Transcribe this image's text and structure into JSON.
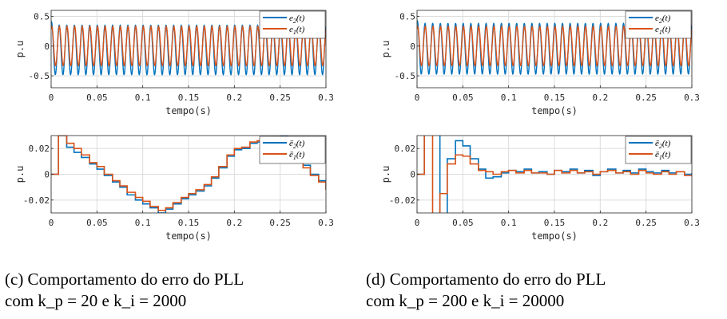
{
  "colors": {
    "blue": "#0072bd",
    "orange": "#d95319",
    "grid": "#dcdcdc"
  },
  "chart_data": [
    {
      "type": "line",
      "panel": "top-left",
      "xlabel": "tempo(s)",
      "ylabel": "p.u",
      "xlim": [
        0,
        0.3
      ],
      "ylim": [
        -0.7,
        0.6
      ],
      "xticks": [
        "0",
        "0.05",
        "0.1",
        "0.15",
        "0.2",
        "0.25",
        "0.3"
      ],
      "yticks": [
        "0.5",
        "0",
        "-0.5"
      ],
      "ytick_values": [
        0.5,
        0,
        -0.5
      ],
      "grid": true,
      "legend": "top-right",
      "signal": {
        "kind": "sine",
        "frequency_hz": 120,
        "blue_min": -0.48,
        "blue_max": 0.35,
        "orange_min": -0.33,
        "orange_max": 0.33
      },
      "series": [
        {
          "name": "e2(t)",
          "color": "blue"
        },
        {
          "name": "e1(t)",
          "color": "orange"
        }
      ]
    },
    {
      "type": "line",
      "panel": "top-right",
      "xlabel": "tempo(s)",
      "ylabel": "p.u",
      "xlim": [
        0,
        0.3
      ],
      "ylim": [
        -0.7,
        0.6
      ],
      "xticks": [
        "0",
        "0.05",
        "0.1",
        "0.15",
        "0.2",
        "0.25",
        "0.3"
      ],
      "yticks": [
        "0.5",
        "0",
        "-0.5"
      ],
      "ytick_values": [
        0.5,
        0,
        -0.5
      ],
      "grid": true,
      "legend": "top-right",
      "signal": {
        "kind": "sine",
        "frequency_hz": 120,
        "blue_min": -0.47,
        "blue_max": 0.38,
        "orange_min": -0.33,
        "orange_max": 0.33
      },
      "series": [
        {
          "name": "e2(t)",
          "color": "blue"
        },
        {
          "name": "e1(t)",
          "color": "orange"
        }
      ]
    },
    {
      "type": "line",
      "panel": "bottom-left",
      "xlabel": "tempo(s)",
      "ylabel": "p.u",
      "xlim": [
        0,
        0.3
      ],
      "ylim": [
        -0.03,
        0.03
      ],
      "xticks": [
        "0",
        "0.05",
        "0.1",
        "0.15",
        "0.2",
        "0.25",
        "0.3"
      ],
      "yticks": [
        "0.02",
        "0",
        "-0.02"
      ],
      "ytick_values": [
        0.02,
        0,
        -0.02
      ],
      "grid": true,
      "legend": "top-right",
      "series": [
        {
          "name": "ē2(t)",
          "color": "blue",
          "x": [
            0,
            0.008,
            0.017,
            0.025,
            0.033,
            0.042,
            0.05,
            0.058,
            0.067,
            0.075,
            0.083,
            0.092,
            0.1,
            0.108,
            0.117,
            0.125,
            0.133,
            0.142,
            0.15,
            0.158,
            0.167,
            0.175,
            0.183,
            0.192,
            0.2,
            0.208,
            0.217,
            0.225,
            0.233,
            0.242,
            0.25,
            0.258,
            0.267,
            0.275,
            0.283,
            0.292,
            0.3
          ],
          "y": [
            0,
            0.03,
            0.021,
            0.017,
            0.013,
            0.008,
            0.004,
            -0.001,
            -0.006,
            -0.01,
            -0.016,
            -0.02,
            -0.023,
            -0.026,
            -0.03,
            -0.027,
            -0.023,
            -0.019,
            -0.016,
            -0.013,
            -0.009,
            -0.003,
            0.005,
            0.014,
            0.019,
            0.02,
            0.024,
            0.025,
            0.027,
            0.026,
            0.03,
            0.025,
            0.017,
            0.007,
            0,
            -0.005,
            -0.012
          ]
        },
        {
          "name": "ē1(t)",
          "color": "orange",
          "x": [
            0,
            0.008,
            0.017,
            0.025,
            0.033,
            0.042,
            0.05,
            0.058,
            0.067,
            0.075,
            0.083,
            0.092,
            0.1,
            0.108,
            0.117,
            0.125,
            0.133,
            0.142,
            0.15,
            0.158,
            0.167,
            0.175,
            0.183,
            0.192,
            0.2,
            0.208,
            0.217,
            0.225,
            0.233,
            0.242,
            0.25,
            0.258,
            0.267,
            0.275,
            0.283,
            0.292,
            0.3
          ],
          "y": [
            0,
            0.03,
            0.024,
            0.02,
            0.015,
            0.009,
            0.006,
            0,
            -0.005,
            -0.009,
            -0.014,
            -0.018,
            -0.021,
            -0.025,
            -0.028,
            -0.026,
            -0.022,
            -0.018,
            -0.015,
            -0.012,
            -0.008,
            -0.002,
            0.006,
            0.015,
            0.02,
            0.021,
            0.025,
            0.026,
            0.028,
            0.026,
            0.029,
            0.022,
            0.015,
            0.005,
            -0.001,
            -0.006,
            -0.012
          ]
        }
      ]
    },
    {
      "type": "line",
      "panel": "bottom-right",
      "xlabel": "tempo(s)",
      "ylabel": "p.u",
      "xlim": [
        0,
        0.3
      ],
      "ylim": [
        -0.03,
        0.03
      ],
      "xticks": [
        "0",
        "0.05",
        "0.1",
        "0.15",
        "0.2",
        "0.25",
        "0.3"
      ],
      "yticks": [
        "0.02",
        "0",
        "-0.02"
      ],
      "ytick_values": [
        0.02,
        0,
        -0.02
      ],
      "grid": true,
      "legend": "top-right",
      "series": [
        {
          "name": "ē2(t)",
          "color": "blue",
          "x": [
            0,
            0.008,
            0.017,
            0.025,
            0.033,
            0.042,
            0.05,
            0.058,
            0.067,
            0.075,
            0.083,
            0.092,
            0.1,
            0.108,
            0.117,
            0.125,
            0.133,
            0.142,
            0.15,
            0.158,
            0.167,
            0.175,
            0.183,
            0.192,
            0.2,
            0.208,
            0.217,
            0.225,
            0.233,
            0.242,
            0.25,
            0.258,
            0.267,
            0.275,
            0.283,
            0.292,
            0.3
          ],
          "y": [
            0,
            0.06,
            0.045,
            -0.06,
            0.012,
            0.026,
            0.022,
            0.012,
            0.004,
            -0.003,
            -0.002,
            0.001,
            0.003,
            0.002,
            0.004,
            0.001,
            0.002,
            0,
            0.003,
            0.002,
            0.004,
            0.001,
            0.003,
            -0.001,
            0.002,
            0.004,
            0.001,
            0.003,
            0.001,
            0.004,
            0.002,
            0.001,
            0.003,
            0.001,
            0.002,
            0,
            0.001
          ]
        },
        {
          "name": "ē1(t)",
          "color": "orange",
          "x": [
            0,
            0.008,
            0.017,
            0.025,
            0.033,
            0.042,
            0.05,
            0.058,
            0.067,
            0.075,
            0.083,
            0.092,
            0.1,
            0.108,
            0.117,
            0.125,
            0.133,
            0.142,
            0.15,
            0.158,
            0.167,
            0.175,
            0.183,
            0.192,
            0.2,
            0.208,
            0.217,
            0.225,
            0.233,
            0.242,
            0.25,
            0.258,
            0.267,
            0.275,
            0.283,
            0.292,
            0.3
          ],
          "y": [
            0,
            0.05,
            -0.045,
            -0.015,
            0.008,
            0.015,
            0.014,
            0.008,
            0.003,
            0.002,
            0,
            0.002,
            0.003,
            0.001,
            0.003,
            0.001,
            0.001,
            0,
            0.003,
            0.001,
            0.003,
            0.001,
            0.002,
            0,
            0.002,
            0.003,
            0.001,
            0.002,
            0,
            0.003,
            0.001,
            0,
            0.002,
            0,
            0.002,
            -0.001,
            0
          ]
        }
      ]
    }
  ],
  "captions": {
    "c": "(c) Comportamento do erro do PLL\ncom k_p = 20 e k_i = 2000",
    "d": "(d) Comportamento do erro do PLL\ncom k_p = 200 e k_i = 20000"
  }
}
